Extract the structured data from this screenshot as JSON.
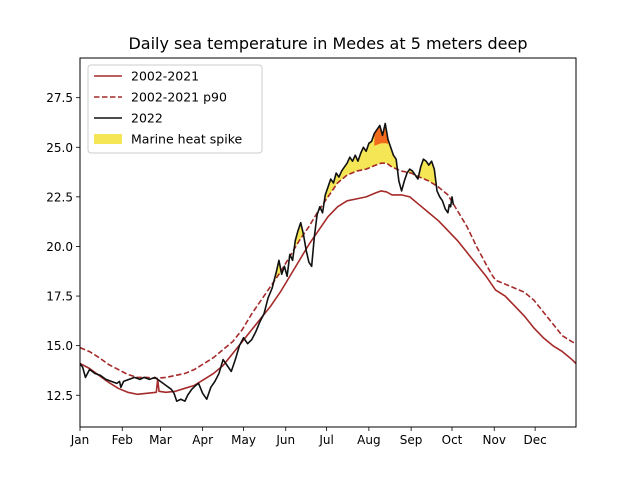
{
  "chart_data": {
    "type": "line",
    "title": "Daily sea temperature in Medes at 5 meters deep",
    "xlabel": "",
    "ylabel": "",
    "x_unit": "day of year",
    "xlim": [
      1,
      365
    ],
    "ylim": [
      10.9,
      29.5
    ],
    "x_ticks": [
      {
        "day": 1,
        "label": "Jan"
      },
      {
        "day": 32,
        "label": "Feb"
      },
      {
        "day": 60,
        "label": "Mar"
      },
      {
        "day": 91,
        "label": "Apr"
      },
      {
        "day": 121,
        "label": "May"
      },
      {
        "day": 152,
        "label": "Jun"
      },
      {
        "day": 182,
        "label": "Jul"
      },
      {
        "day": 213,
        "label": "Aug"
      },
      {
        "day": 244,
        "label": "Sep"
      },
      {
        "day": 274,
        "label": "Oct"
      },
      {
        "day": 305,
        "label": "Nov"
      },
      {
        "day": 335,
        "label": "Dec"
      }
    ],
    "y_ticks": [
      12.5,
      15.0,
      17.5,
      20.0,
      22.5,
      25.0,
      27.5
    ],
    "y_tick_labels": [
      "12.5",
      "15.0",
      "17.5",
      "20.0",
      "22.5",
      "25.0",
      "27.5"
    ],
    "grid": false,
    "legend_position": "top-left",
    "series": [
      {
        "name": "2002-2021",
        "style": "solid",
        "color": "#a52a2a",
        "points": [
          [
            1,
            14.1
          ],
          [
            8,
            13.85
          ],
          [
            15,
            13.5
          ],
          [
            22,
            13.15
          ],
          [
            29,
            12.85
          ],
          [
            36,
            12.65
          ],
          [
            43,
            12.55
          ],
          [
            50,
            12.6
          ],
          [
            57,
            12.65
          ],
          [
            58,
            13.3
          ],
          [
            59,
            12.7
          ],
          [
            64,
            12.65
          ],
          [
            71,
            12.7
          ],
          [
            78,
            12.85
          ],
          [
            85,
            13.0
          ],
          [
            92,
            13.3
          ],
          [
            99,
            13.6
          ],
          [
            106,
            14.0
          ],
          [
            113,
            14.6
          ],
          [
            120,
            15.2
          ],
          [
            127,
            15.8
          ],
          [
            134,
            16.4
          ],
          [
            141,
            17.0
          ],
          [
            148,
            17.7
          ],
          [
            155,
            18.5
          ],
          [
            162,
            19.3
          ],
          [
            169,
            20.1
          ],
          [
            176,
            20.8
          ],
          [
            183,
            21.5
          ],
          [
            190,
            22.0
          ],
          [
            197,
            22.3
          ],
          [
            204,
            22.4
          ],
          [
            211,
            22.5
          ],
          [
            218,
            22.7
          ],
          [
            222,
            22.8
          ],
          [
            226,
            22.75
          ],
          [
            230,
            22.6
          ],
          [
            237,
            22.6
          ],
          [
            243,
            22.5
          ],
          [
            250,
            22.1
          ],
          [
            257,
            21.7
          ],
          [
            264,
            21.3
          ],
          [
            271,
            20.8
          ],
          [
            278,
            20.3
          ],
          [
            285,
            19.7
          ],
          [
            292,
            19.1
          ],
          [
            299,
            18.5
          ],
          [
            303,
            18.1
          ],
          [
            306,
            17.8
          ],
          [
            313,
            17.5
          ],
          [
            320,
            17.0
          ],
          [
            327,
            16.5
          ],
          [
            334,
            15.9
          ],
          [
            341,
            15.4
          ],
          [
            348,
            15.0
          ],
          [
            355,
            14.7
          ],
          [
            362,
            14.3
          ],
          [
            365,
            14.1
          ]
        ]
      },
      {
        "name": "2002-2021 p90",
        "style": "dashed",
        "color": "#a52a2a",
        "points": [
          [
            1,
            14.9
          ],
          [
            8,
            14.7
          ],
          [
            15,
            14.4
          ],
          [
            22,
            14.05
          ],
          [
            29,
            13.8
          ],
          [
            36,
            13.55
          ],
          [
            43,
            13.4
          ],
          [
            50,
            13.4
          ],
          [
            57,
            13.35
          ],
          [
            64,
            13.4
          ],
          [
            71,
            13.5
          ],
          [
            78,
            13.6
          ],
          [
            85,
            13.8
          ],
          [
            92,
            14.1
          ],
          [
            99,
            14.4
          ],
          [
            106,
            14.8
          ],
          [
            113,
            15.2
          ],
          [
            120,
            15.8
          ],
          [
            127,
            16.6
          ],
          [
            134,
            17.3
          ],
          [
            141,
            18.0
          ],
          [
            148,
            18.7
          ],
          [
            155,
            19.5
          ],
          [
            162,
            20.3
          ],
          [
            169,
            21.0
          ],
          [
            176,
            21.8
          ],
          [
            183,
            22.5
          ],
          [
            190,
            23.2
          ],
          [
            197,
            23.6
          ],
          [
            204,
            23.8
          ],
          [
            211,
            23.9
          ],
          [
            218,
            24.1
          ],
          [
            222,
            24.2
          ],
          [
            226,
            24.2
          ],
          [
            230,
            24.0
          ],
          [
            237,
            23.8
          ],
          [
            244,
            23.7
          ],
          [
            250,
            23.5
          ],
          [
            257,
            23.3
          ],
          [
            264,
            23.0
          ],
          [
            271,
            22.6
          ],
          [
            278,
            21.8
          ],
          [
            285,
            21.0
          ],
          [
            292,
            20.0
          ],
          [
            299,
            19.1
          ],
          [
            303,
            18.6
          ],
          [
            306,
            18.3
          ],
          [
            313,
            18.1
          ],
          [
            320,
            17.9
          ],
          [
            327,
            17.7
          ],
          [
            334,
            17.3
          ],
          [
            341,
            16.7
          ],
          [
            348,
            16.1
          ],
          [
            355,
            15.5
          ],
          [
            362,
            15.2
          ],
          [
            365,
            15.1
          ]
        ]
      },
      {
        "name": "2022",
        "style": "solid",
        "color": "#111111",
        "points": [
          [
            1,
            14.1
          ],
          [
            3,
            13.9
          ],
          [
            5,
            13.4
          ],
          [
            8,
            13.8
          ],
          [
            12,
            13.6
          ],
          [
            16,
            13.5
          ],
          [
            20,
            13.3
          ],
          [
            24,
            13.2
          ],
          [
            28,
            13.1
          ],
          [
            30,
            13.2
          ],
          [
            31,
            12.9
          ],
          [
            33,
            13.2
          ],
          [
            37,
            13.3
          ],
          [
            41,
            13.4
          ],
          [
            45,
            13.3
          ],
          [
            48,
            13.4
          ],
          [
            52,
            13.3
          ],
          [
            56,
            13.4
          ],
          [
            60,
            13.2
          ],
          [
            64,
            13.0
          ],
          [
            68,
            12.8
          ],
          [
            70,
            12.6
          ],
          [
            72,
            12.2
          ],
          [
            75,
            12.3
          ],
          [
            78,
            12.2
          ],
          [
            80,
            12.5
          ],
          [
            83,
            12.8
          ],
          [
            86,
            13.0
          ],
          [
            88,
            13.1
          ],
          [
            91,
            12.6
          ],
          [
            94,
            12.3
          ],
          [
            97,
            12.9
          ],
          [
            100,
            13.2
          ],
          [
            103,
            13.6
          ],
          [
            106,
            14.3
          ],
          [
            109,
            14.0
          ],
          [
            112,
            13.7
          ],
          [
            115,
            14.3
          ],
          [
            118,
            15.0
          ],
          [
            121,
            15.4
          ],
          [
            124,
            15.1
          ],
          [
            127,
            15.3
          ],
          [
            130,
            15.7
          ],
          [
            133,
            16.2
          ],
          [
            136,
            16.6
          ],
          [
            139,
            17.4
          ],
          [
            142,
            17.9
          ],
          [
            145,
            18.7
          ],
          [
            147,
            19.3
          ],
          [
            149,
            18.6
          ],
          [
            151,
            19.0
          ],
          [
            153,
            18.5
          ],
          [
            155,
            19.6
          ],
          [
            157,
            19.3
          ],
          [
            159,
            20.3
          ],
          [
            161,
            20.8
          ],
          [
            163,
            21.2
          ],
          [
            165,
            20.6
          ],
          [
            167,
            19.8
          ],
          [
            169,
            19.2
          ],
          [
            171,
            19.0
          ],
          [
            173,
            20.5
          ],
          [
            175,
            21.6
          ],
          [
            177,
            22.0
          ],
          [
            179,
            21.7
          ],
          [
            181,
            22.6
          ],
          [
            183,
            23.0
          ],
          [
            185,
            23.4
          ],
          [
            187,
            23.2
          ],
          [
            189,
            23.7
          ],
          [
            191,
            23.5
          ],
          [
            193,
            23.8
          ],
          [
            195,
            24.0
          ],
          [
            197,
            24.2
          ],
          [
            199,
            24.5
          ],
          [
            201,
            24.3
          ],
          [
            203,
            24.6
          ],
          [
            205,
            24.3
          ],
          [
            207,
            24.7
          ],
          [
            209,
            25.0
          ],
          [
            211,
            24.8
          ],
          [
            213,
            25.2
          ],
          [
            215,
            25.3
          ],
          [
            217,
            25.7
          ],
          [
            219,
            25.9
          ],
          [
            221,
            26.1
          ],
          [
            223,
            25.6
          ],
          [
            225,
            26.2
          ],
          [
            227,
            25.4
          ],
          [
            229,
            25.0
          ],
          [
            231,
            24.6
          ],
          [
            233,
            24.4
          ],
          [
            235,
            23.3
          ],
          [
            237,
            22.8
          ],
          [
            239,
            23.3
          ],
          [
            241,
            23.7
          ],
          [
            243,
            23.9
          ],
          [
            245,
            23.8
          ],
          [
            247,
            23.6
          ],
          [
            249,
            23.4
          ],
          [
            251,
            24.0
          ],
          [
            253,
            24.4
          ],
          [
            255,
            24.3
          ],
          [
            257,
            24.1
          ],
          [
            259,
            24.3
          ],
          [
            261,
            23.9
          ],
          [
            263,
            22.8
          ],
          [
            265,
            22.5
          ],
          [
            267,
            22.3
          ],
          [
            269,
            21.9
          ],
          [
            271,
            21.7
          ],
          [
            272,
            22.1
          ],
          [
            273,
            22.0
          ],
          [
            274,
            22.5
          ],
          [
            275,
            22.1
          ]
        ]
      },
      {
        "name": "Marine heat spike",
        "style": "fill",
        "color": "#f5e655",
        "description": "area where 2022 exceeds 2002-2021 p90"
      }
    ],
    "annotations": [
      {
        "name": "extreme-spike",
        "color": "#f26a1b",
        "days": [
          217,
          227
        ]
      }
    ]
  }
}
